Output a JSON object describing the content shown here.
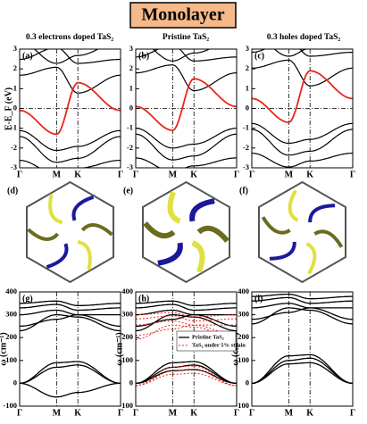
{
  "title": "Monolayer",
  "columns": [
    {
      "heading": "0.3 electrons doped TaS₂"
    },
    {
      "heading": "Pristine TaS₂"
    },
    {
      "heading": "0.3 holes doped TaS₂"
    }
  ],
  "band_panels": [
    "(a)",
    "(b)",
    "(c)"
  ],
  "band_yticks": [
    -3,
    -2,
    -1,
    0,
    1,
    2,
    3
  ],
  "band_ylabel": "E-E_F (eV)",
  "kpath": [
    "Γ",
    "M",
    "K",
    "Γ"
  ],
  "fermi_panels": [
    "(d)",
    "(e)",
    "(f)"
  ],
  "phonon_panels": [
    "(g)",
    "(h)",
    "(i)"
  ],
  "phonon_yticks": [
    -100,
    0,
    100,
    200,
    300,
    400
  ],
  "phonon_ylabel": "ω (cm⁻¹)",
  "legend": [
    "Pristine TaS₂",
    "TaS₂ under 5% strain"
  ]
}
